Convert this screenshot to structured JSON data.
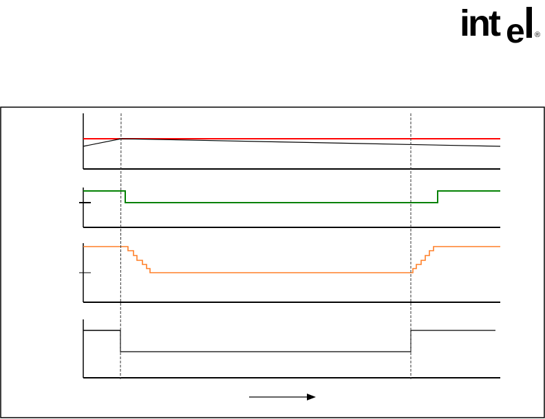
{
  "logo": {
    "text": "intel",
    "registered": "®"
  },
  "colors": {
    "trace_1a": "#ff0000",
    "trace_1b": "#000000",
    "trace_2": "#008000",
    "trace_3": "#ff7f27",
    "trace_4": "#000000",
    "frame": "#000000"
  },
  "diagram": {
    "type": "timing-diagram",
    "panels": 4,
    "time_arrow": "right"
  }
}
